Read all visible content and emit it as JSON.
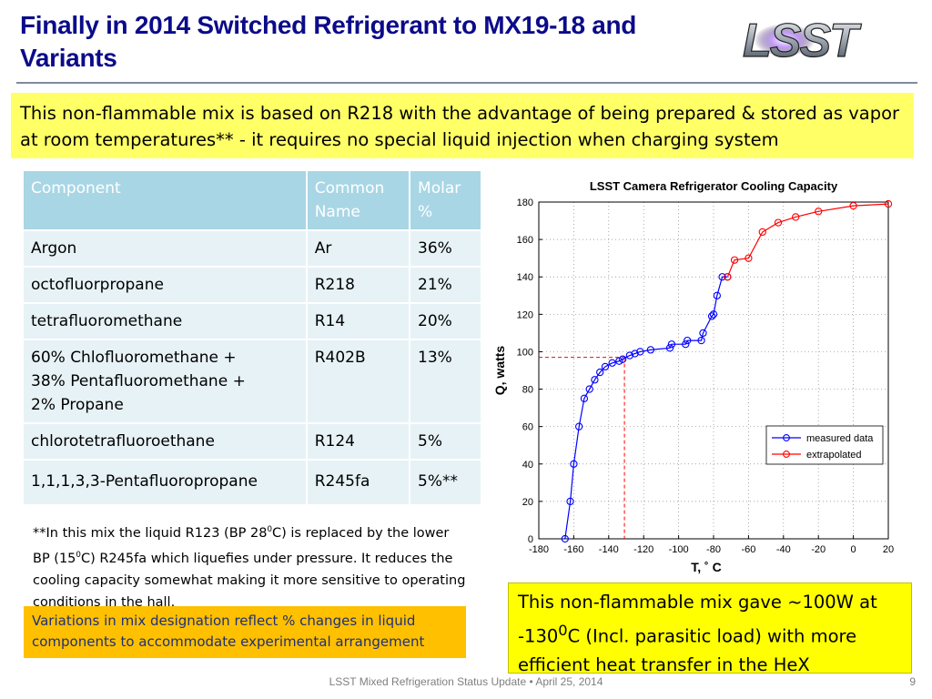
{
  "slide": {
    "title": "Finally in 2014 Switched Refrigerant to MX19-18 and Variants",
    "intro": "This non-flammable mix is based on R218 with the advantage of being prepared & stored as vapor at room temperatures** - it requires no special liquid injection when charging system",
    "logo_text": "LSST",
    "footer": "LSST Mixed Refrigeration Status Update • April 25, 2014",
    "page_number": "9"
  },
  "table": {
    "headers": [
      "Component",
      "Common Name",
      "Molar %"
    ],
    "rows": [
      [
        "Argon",
        "Ar",
        "36%"
      ],
      [
        "octofluorpropane",
        "R218",
        "21%"
      ],
      [
        "tetrafluoromethane",
        "R14",
        "20%"
      ],
      [
        "60% Chlofluoromethane + 38% Pentafluoromethane + 2% Propane",
        "R402B",
        "13%"
      ],
      [
        "chlorotetrafluoroethane",
        "R124",
        "5%"
      ],
      [
        "1,1,1,3,3-Pentafluoropropane",
        "R245fa",
        "5%**"
      ]
    ]
  },
  "note": {
    "part1": "**In this mix the liquid R123 (BP 28",
    "sup1": "0",
    "part2": "C) is replaced by the lower BP (15",
    "sup2": "0",
    "part3": "C) R245fa which liquefies under pressure. It reduces the cooling capacity somewhat making it more sensitive to operating conditions in the hall."
  },
  "variations_note": "Variations in mix designation reflect % changes in liquid components to accommodate experimental arrangement",
  "conclusion": {
    "part1": "This  non-flammable mix gave  ~100W at -130",
    "sup": "0",
    "part2": "C  (Incl. parasitic load) with more efficient heat transfer in the HeX"
  },
  "colors": {
    "title": "#0b0b8a",
    "measured": "#0000ff",
    "extrapolated": "#ff0000",
    "table_header": "#a9d6e5",
    "table_row": "#e7f2f6",
    "intro_bg": "#ffff66",
    "orange_bg": "#ffc000",
    "conclusion_bg": "#ffff00"
  },
  "chart_data": {
    "type": "line",
    "title": "LSST Camera Refrigerator Cooling Capacity",
    "xlabel": "T, ˚ C",
    "ylabel": "Q, watts",
    "xlim": [
      -180,
      20
    ],
    "ylim": [
      0,
      180
    ],
    "xticks": [
      -180,
      -160,
      -140,
      -120,
      -100,
      -80,
      -60,
      -40,
      -20,
      0,
      20
    ],
    "yticks": [
      0,
      20,
      40,
      60,
      80,
      100,
      120,
      140,
      160,
      180
    ],
    "grid": true,
    "legend_position": "bottom-right",
    "series": [
      {
        "name": "measured data",
        "color": "#0000ff",
        "marker": "circle",
        "x": [
          -165,
          -162,
          -160,
          -157,
          -154,
          -151,
          -148,
          -145,
          -142,
          -138,
          -134,
          -132,
          -128,
          -125,
          -122,
          -116,
          -105,
          -104,
          -96,
          -95,
          -87,
          -86,
          -81,
          -80,
          -78,
          -75,
          -72
        ],
        "y": [
          0,
          20,
          40,
          60,
          75,
          80,
          85,
          89,
          92,
          94,
          95,
          96,
          98,
          99,
          100,
          101,
          102,
          104,
          104,
          106,
          106,
          110,
          119,
          120,
          130,
          140,
          140
        ]
      },
      {
        "name": "extrapolated",
        "color": "#ff0000",
        "marker": "circle",
        "x": [
          -72,
          -68,
          -60,
          -52,
          -43,
          -33,
          -20,
          0,
          20
        ],
        "y": [
          140,
          149,
          150,
          164,
          169,
          172,
          175,
          178,
          179
        ]
      }
    ],
    "annotations": [
      {
        "type": "dashed-guide",
        "color": "#ff0000",
        "x": -131,
        "y": 97
      }
    ]
  }
}
